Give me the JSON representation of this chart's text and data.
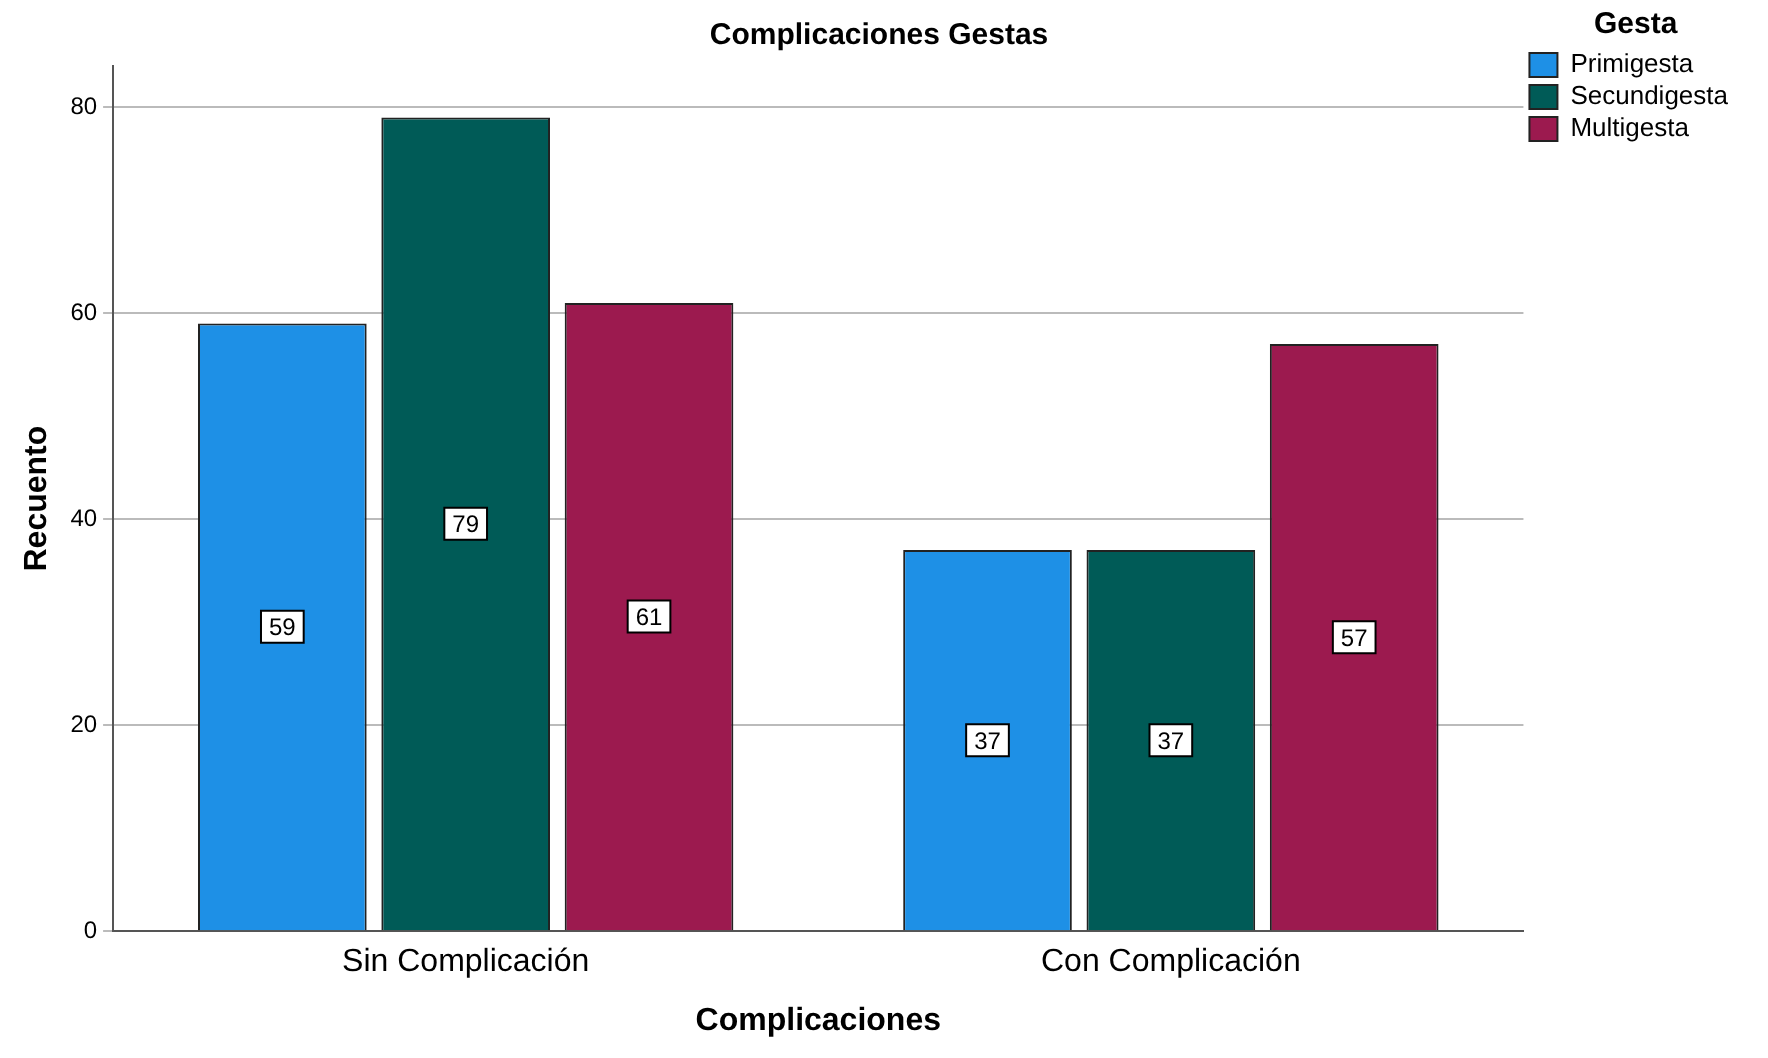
{
  "chart_data": {
    "type": "bar",
    "title": "Complicaciones Gestas",
    "xlabel": "Complicaciones",
    "ylabel": "Recuento",
    "legend_title": "Gesta",
    "categories": [
      "Sin Complicación",
      "Con Complicación"
    ],
    "series": [
      {
        "name": "Primigesta",
        "color": "#1e90e6",
        "values": [
          59,
          37
        ]
      },
      {
        "name": "Secundigesta",
        "color": "#005b57",
        "values": [
          79,
          37
        ]
      },
      {
        "name": "Multigesta",
        "color": "#9c1a4f",
        "values": [
          61,
          57
        ]
      }
    ],
    "ylim": [
      0,
      84
    ],
    "yticks": [
      0,
      20,
      40,
      60,
      80
    ],
    "grid": "y",
    "legend": "top right",
    "data_labels": true
  }
}
